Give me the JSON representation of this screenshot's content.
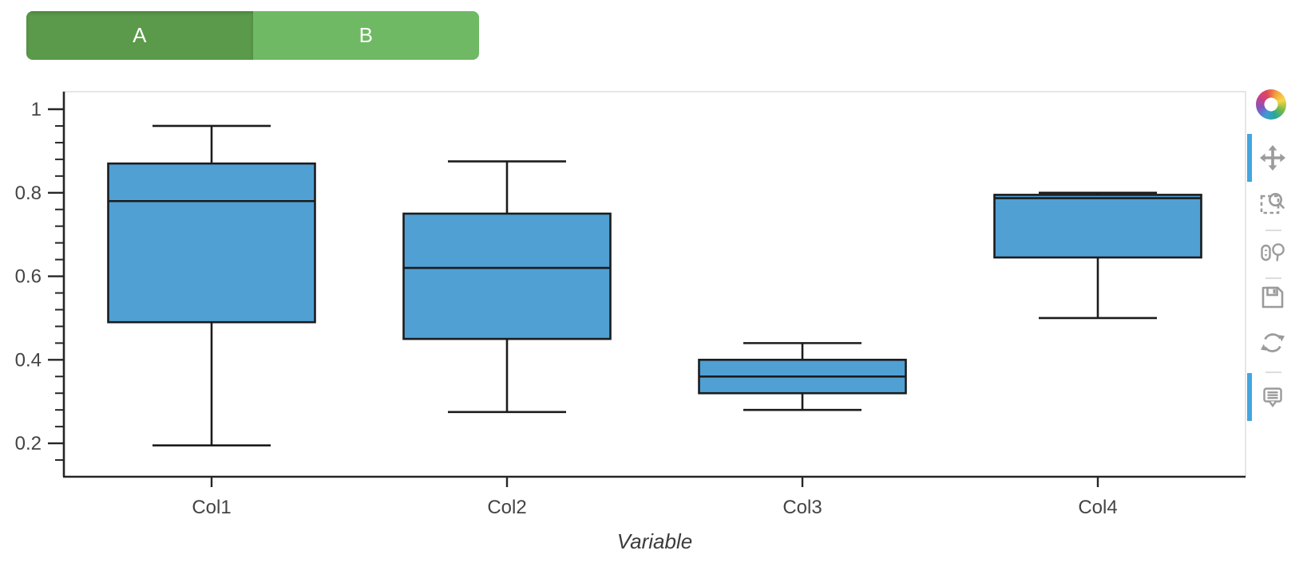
{
  "buttons": {
    "items": [
      {
        "label": "A",
        "active": true
      },
      {
        "label": "B",
        "active": false
      }
    ],
    "active_color": "#5A9A4A",
    "inactive_color": "#6FB964"
  },
  "toolbar": {
    "logo": "bokeh-logo",
    "active_indicator_color": "#42A5E0",
    "tools": [
      {
        "name": "pan",
        "icon": "move-icon",
        "active": true
      },
      {
        "name": "box-zoom",
        "icon": "box-zoom-icon",
        "active": false
      },
      {
        "name": "wheel-zoom",
        "icon": "wheel-zoom-icon",
        "active": false
      },
      {
        "name": "save",
        "icon": "floppy-disk-icon",
        "active": false
      },
      {
        "name": "reset",
        "icon": "refresh-icon",
        "active": false
      },
      {
        "name": "hover",
        "icon": "tooltip-bubble-icon",
        "active": true
      }
    ]
  },
  "chart_data": {
    "type": "boxplot",
    "title": "",
    "xlabel": "Variable",
    "ylabel": "",
    "categories": [
      "Col1",
      "Col2",
      "Col3",
      "Col4"
    ],
    "series": [
      {
        "name": "Col1",
        "whisker_low": 0.195,
        "q1": 0.49,
        "median": 0.78,
        "q3": 0.87,
        "whisker_high": 0.96
      },
      {
        "name": "Col2",
        "whisker_low": 0.275,
        "q1": 0.45,
        "median": 0.62,
        "q3": 0.75,
        "whisker_high": 0.875
      },
      {
        "name": "Col3",
        "whisker_low": 0.28,
        "q1": 0.32,
        "median": 0.36,
        "q3": 0.4,
        "whisker_high": 0.44
      },
      {
        "name": "Col4",
        "whisker_low": 0.5,
        "q1": 0.645,
        "median": 0.787,
        "q3": 0.795,
        "whisker_high": 0.8
      }
    ],
    "y_major_ticks": [
      1,
      0.8,
      0.6,
      0.4,
      0.2
    ],
    "y_tick_labels": [
      "1",
      "0.8",
      "0.6",
      "0.4",
      "0.2"
    ],
    "y_minor_step": 0.04,
    "ylim": [
      0.12,
      1.042
    ],
    "grid": false,
    "legend": null,
    "box_fill_color": "#50A0D4",
    "line_color": "#1C1C1C",
    "axis_color": "#262626",
    "frame_color": "#E6E6E6",
    "tick_label_color": "#444444",
    "axis_label_color": "#3B3B3B"
  }
}
